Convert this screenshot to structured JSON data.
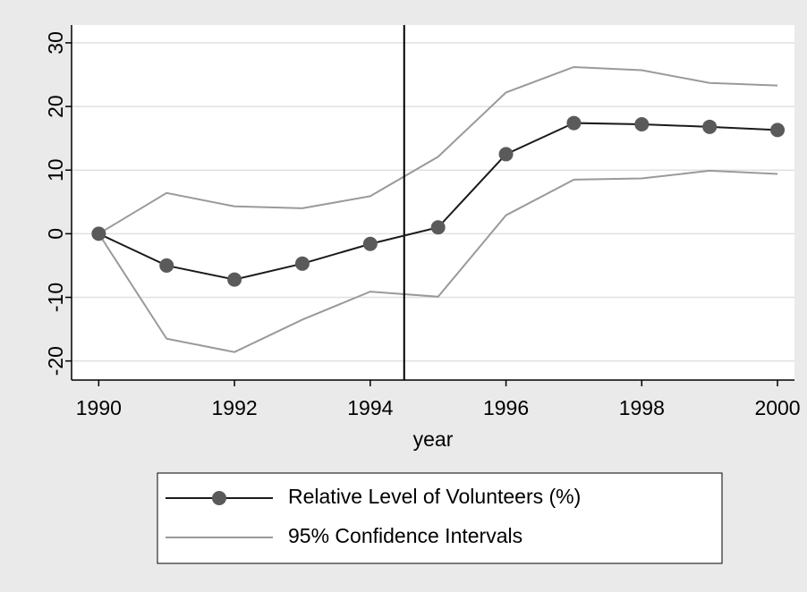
{
  "chart_data": {
    "type": "line",
    "x": [
      1990,
      1991,
      1992,
      1993,
      1994,
      1995,
      1996,
      1997,
      1998,
      1999,
      2000
    ],
    "series": [
      {
        "name": "Relative Level of Volunteers (%)",
        "color": "#1a1a1a",
        "marker_color": "#5a5a5a",
        "values": [
          0,
          -5,
          -7.2,
          -4.7,
          -1.6,
          1,
          12.5,
          17.4,
          17.2,
          16.8,
          16.3
        ]
      }
    ],
    "confidence_interval": {
      "name": "95% Confidence Intervals",
      "color": "#9a9a9a",
      "upper": [
        0,
        6.4,
        4.3,
        4.0,
        5.9,
        12.1,
        22.2,
        26.2,
        25.7,
        23.7,
        23.3
      ],
      "lower": [
        0,
        -16.5,
        -18.6,
        -13.5,
        -9.1,
        -9.9,
        2.9,
        8.5,
        8.7,
        9.9,
        9.4
      ]
    },
    "vline": 1994.5,
    "xlabel": "year",
    "xlim": [
      1989.6,
      2000.25
    ],
    "xticks": [
      1990,
      1992,
      1994,
      1996,
      1998,
      2000
    ],
    "ylim": [
      -23,
      32.8
    ],
    "yticks": [
      -20,
      -10,
      0,
      10,
      20,
      30
    ],
    "grid": true
  }
}
